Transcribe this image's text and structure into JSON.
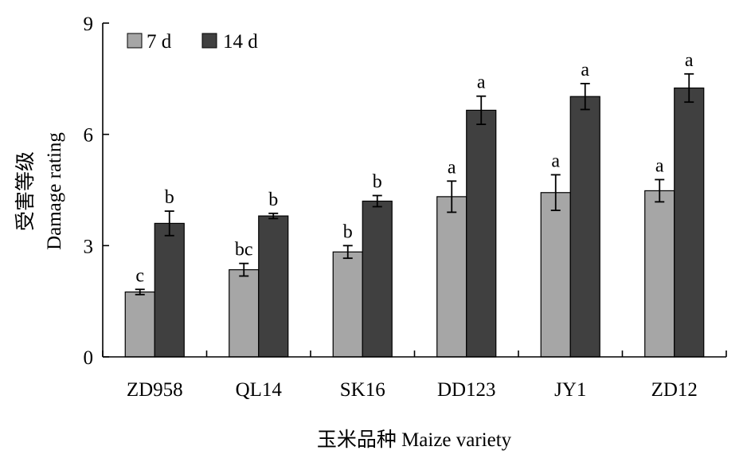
{
  "chart_data": {
    "type": "bar",
    "categories": [
      "ZD958",
      "QL14",
      "SK16",
      "DD123",
      "JY1",
      "ZD12"
    ],
    "series": [
      {
        "name": "7 d",
        "color": "#a6a6a6",
        "values": [
          1.75,
          2.35,
          2.83,
          4.32,
          4.43,
          4.48
        ],
        "errors": [
          0.07,
          0.17,
          0.17,
          0.42,
          0.48,
          0.3
        ],
        "labels": [
          "c",
          "bc",
          "b",
          "a",
          "a",
          "a"
        ]
      },
      {
        "name": "14 d",
        "color": "#404040",
        "values": [
          3.6,
          3.8,
          4.2,
          6.65,
          7.02,
          7.25
        ],
        "errors": [
          0.33,
          0.07,
          0.15,
          0.38,
          0.35,
          0.38
        ],
        "labels": [
          "b",
          "b",
          "b",
          "a",
          "a",
          "a"
        ]
      }
    ],
    "yticks": [
      "0",
      "3",
      "6",
      "9"
    ],
    "ylim": [
      0,
      9
    ],
    "xlabel": "玉米品种 Maize variety",
    "ylabel_cn": "受害等级",
    "ylabel_en": "Damage rating",
    "legend_position": "top-left",
    "grid": false
  }
}
